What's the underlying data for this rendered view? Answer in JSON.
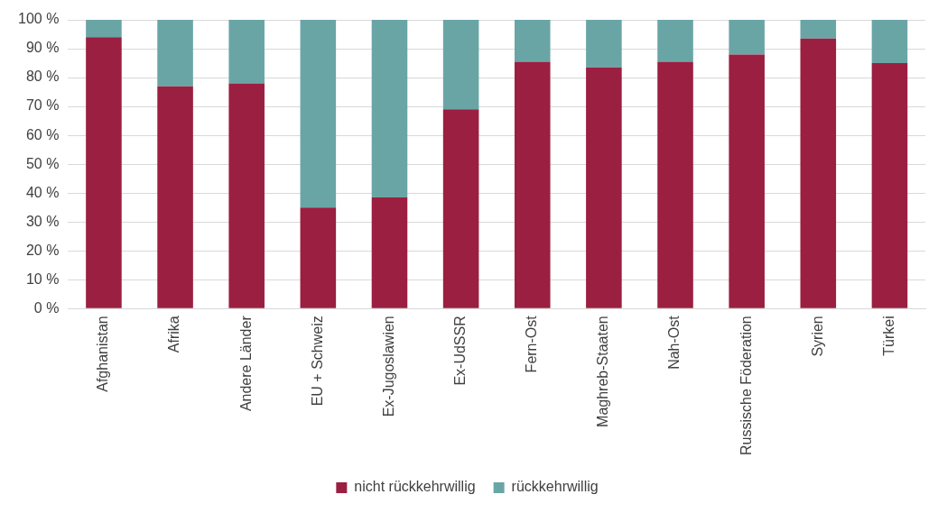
{
  "chart_data": {
    "type": "bar",
    "stacked": true,
    "categories": [
      "Afghanistan",
      "Afrika",
      "Andere Länder",
      "EU + Schweiz",
      "Ex-Jugoslawien",
      "Ex-UdSSR",
      "Fern-Ost",
      "Maghreb-Staaten",
      "Nah-Ost",
      "Russische Föderation",
      "Syrien",
      "Türkei"
    ],
    "series": [
      {
        "name": "nicht rückkehrwillig",
        "color": "#9b1f40",
        "values": [
          94,
          77,
          78,
          35,
          38.5,
          69,
          85.5,
          83.5,
          85.5,
          88,
          93.5,
          85
        ]
      },
      {
        "name": "rückkehrwillig",
        "color": "#6aa5a6",
        "values": [
          6,
          23,
          22,
          65,
          61.5,
          31,
          14.5,
          16.5,
          14.5,
          12,
          6.5,
          15
        ]
      }
    ],
    "ylim": [
      0,
      100
    ],
    "yticks": [
      {
        "value": 0,
        "label": "0 %"
      },
      {
        "value": 10,
        "label": "10 %"
      },
      {
        "value": 20,
        "label": "20 %"
      },
      {
        "value": 30,
        "label": "30 %"
      },
      {
        "value": 40,
        "label": "40 %"
      },
      {
        "value": 50,
        "label": "50 %"
      },
      {
        "value": 60,
        "label": "60 %"
      },
      {
        "value": 70,
        "label": "70 %"
      },
      {
        "value": 80,
        "label": "80 %"
      },
      {
        "value": 90,
        "label": "90 %"
      },
      {
        "value": 100,
        "label": "100 %"
      }
    ],
    "grid": "y",
    "legend": "bottom"
  }
}
